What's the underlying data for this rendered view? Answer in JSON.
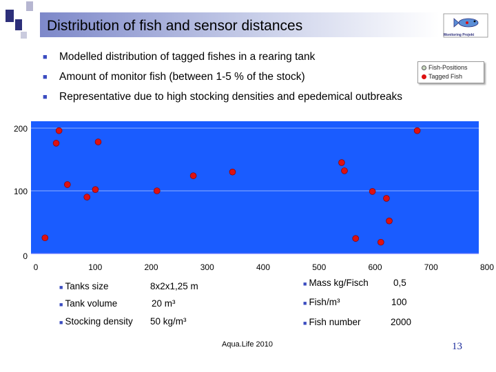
{
  "slide": {
    "title": "Distribution of fish and sensor distances",
    "logo_label": "Monitoring Projekt",
    "bullets": [
      "Modelled distribution of tagged fishes in a rearing tank",
      "Amount of monitor fish (between 1-5 % of the stock)",
      "Representative due to high stocking densities and epedemical outbreaks"
    ],
    "footer": "Aqua.Life 2010",
    "page_number": "13"
  },
  "legend": {
    "items": [
      {
        "label": "Fish-Positions",
        "color": "#c9d9c0"
      },
      {
        "label": "Tagged Fish",
        "color": "#dd1111"
      }
    ]
  },
  "chart_data": {
    "type": "scatter",
    "title": "",
    "xlabel": "",
    "ylabel": "",
    "xlim": [
      0,
      800
    ],
    "ylim": [
      0,
      200
    ],
    "xticks": [
      0,
      100,
      200,
      300,
      400,
      500,
      600,
      700,
      800
    ],
    "yticks": [
      0,
      100,
      200
    ],
    "grid": "horizontal",
    "background_color": "#1a5cff",
    "point_color": "#dd1111",
    "series": [
      {
        "name": "Tagged Fish",
        "points": [
          [
            50,
            196
          ],
          [
            45,
            176
          ],
          [
            120,
            178
          ],
          [
            65,
            110
          ],
          [
            100,
            90
          ],
          [
            115,
            102
          ],
          [
            25,
            25
          ],
          [
            225,
            100
          ],
          [
            290,
            124
          ],
          [
            360,
            130
          ],
          [
            555,
            145
          ],
          [
            560,
            132
          ],
          [
            610,
            99
          ],
          [
            635,
            88
          ],
          [
            640,
            52
          ],
          [
            580,
            24
          ],
          [
            625,
            18
          ],
          [
            690,
            196
          ]
        ]
      }
    ]
  },
  "info": {
    "left": [
      {
        "label": "Tanks size",
        "value": "8x2x1,25 m"
      },
      {
        "label": "Tank volume",
        "value": "20 m³"
      },
      {
        "label": "Stocking density",
        "value": "50 kg/m³"
      }
    ],
    "right": [
      {
        "label": "Mass kg/Fisch",
        "value": "0,5"
      },
      {
        "label": "Fish/m³",
        "value": "100"
      },
      {
        "label": "Fish number",
        "value": "2000"
      }
    ]
  }
}
